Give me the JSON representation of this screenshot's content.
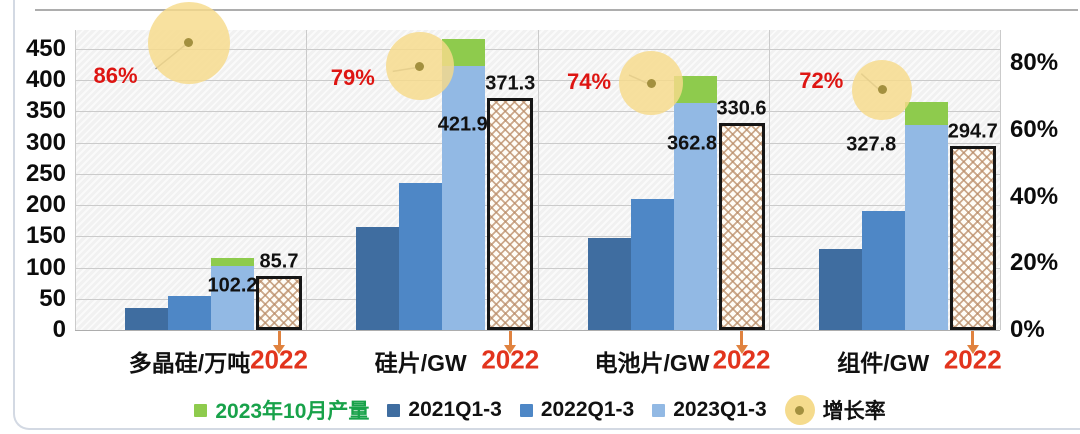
{
  "chart_data": {
    "type": "bar",
    "title": "",
    "categories": [
      {
        "label": "多晶硅/万吨",
        "hatch_axis_label": "2022"
      },
      {
        "label": "硅片/GW",
        "hatch_axis_label": "2022"
      },
      {
        "label": "电池片/GW",
        "hatch_axis_label": "2022"
      },
      {
        "label": "组件/GW",
        "hatch_axis_label": "2022"
      }
    ],
    "series": [
      {
        "name": "2021Q1-3",
        "color": "#3f6da0",
        "values": [
          36,
          165,
          147,
          130
        ]
      },
      {
        "name": "2022Q1-3",
        "color": "#4e87c6",
        "values": [
          55,
          236,
          210,
          191
        ]
      },
      {
        "name": "2023Q1-3",
        "color": "#92b9e4",
        "values": [
          102.2,
          421.9,
          362.8,
          327.8
        ],
        "data_labels": [
          "102.2",
          "421.9",
          "362.8",
          "327.8"
        ]
      },
      {
        "name": "2023年10月产量",
        "color": "#8ecb4d",
        "stacked_on": "2023Q1-3",
        "values": [
          13,
          44,
          44,
          37
        ]
      },
      {
        "name": "2022",
        "style": "hatched",
        "values": [
          85.7,
          371.3,
          330.6,
          294.7
        ],
        "data_labels": [
          "85.7",
          "371.3",
          "330.6",
          "294.7"
        ]
      },
      {
        "name": "增长率",
        "axis": "right",
        "marker": "yellow-circle",
        "values": [
          86,
          79,
          74,
          72
        ],
        "data_labels": [
          "86%",
          "79%",
          "74%",
          "72%"
        ]
      }
    ],
    "left_axis": {
      "range": [
        0,
        480
      ],
      "ticks": [
        "450",
        "400",
        "350",
        "300",
        "250",
        "200",
        "150",
        "100",
        "50",
        "0"
      ],
      "tick_values": [
        450,
        400,
        350,
        300,
        250,
        200,
        150,
        100,
        50,
        0
      ]
    },
    "right_axis": {
      "range": [
        0,
        80
      ],
      "ticks": [
        "80%",
        "60%",
        "40%",
        "20%",
        "0%"
      ],
      "tick_values": [
        80,
        60,
        40,
        20,
        0
      ]
    },
    "grid": true,
    "legend_position": "bottom"
  },
  "legend": {
    "items": [
      {
        "label": "2023年10月产量",
        "marker": "square",
        "color": "#8ecb4d",
        "text_color": "#18a24a"
      },
      {
        "label": "2021Q1-3",
        "marker": "square",
        "color": "#3f6da0",
        "text_color": "#111111"
      },
      {
        "label": "2022Q1-3",
        "marker": "square",
        "color": "#4e87c6",
        "text_color": "#111111"
      },
      {
        "label": "2023Q1-3",
        "marker": "square",
        "color": "#92b9e4",
        "text_color": "#111111"
      },
      {
        "label": "增长率",
        "marker": "circle-dot",
        "color": "#f5db8d",
        "dot_color": "#a3903f",
        "text_color": "#111111"
      }
    ]
  },
  "colors": {
    "pct_red": "#de1512",
    "year_red": "#e2341d",
    "arrow_orange": "#e0823f",
    "circle_fill": "rgba(246,219,138,0.82)",
    "circle_dot": "#a3903f",
    "leader_line": "#9b9b9b"
  }
}
